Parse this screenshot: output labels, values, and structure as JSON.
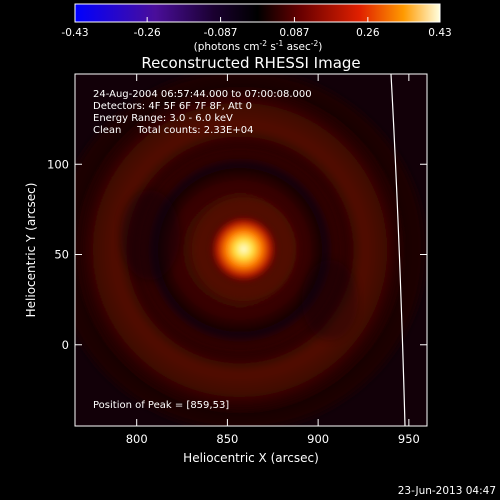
{
  "chart_data": {
    "type": "heatmap",
    "title": "Reconstructed RHESSI Image",
    "xlabel": "Heliocentric X (arcsec)",
    "ylabel": "Heliocentric Y (arcsec)",
    "xlim": [
      766,
      960
    ],
    "ylim": [
      -45,
      150
    ],
    "x_ticks": [
      800,
      850,
      900,
      950
    ],
    "y_ticks": [
      0,
      50,
      100
    ],
    "colorbar": {
      "ticks": [
        "-0.43",
        "-0.26",
        "-0.087",
        "0.087",
        "0.26",
        "0.43"
      ],
      "range": [
        -0.43,
        0.43
      ],
      "unit_label": {
        "pre": "(photons cm",
        "e1": "-2",
        "mid1": " s",
        "e2": "-1",
        "mid2": " asec",
        "e3": "-2",
        "post": ")"
      }
    },
    "annotations": {
      "time": "24-Aug-2004 06:57:44.000 to 07:00:08.000",
      "detectors": "Detectors: 4F 5F 6F 7F 8F, Att 0",
      "energy": "Energy Range: 3.0 - 6.0 keV",
      "clean": "Clean     Total counts: 2.33E+04",
      "peak": "Position of Peak = [859,53]"
    },
    "peak": {
      "x": 859,
      "y": 53
    },
    "timestamp": "23-Jun-2013 04:47"
  }
}
